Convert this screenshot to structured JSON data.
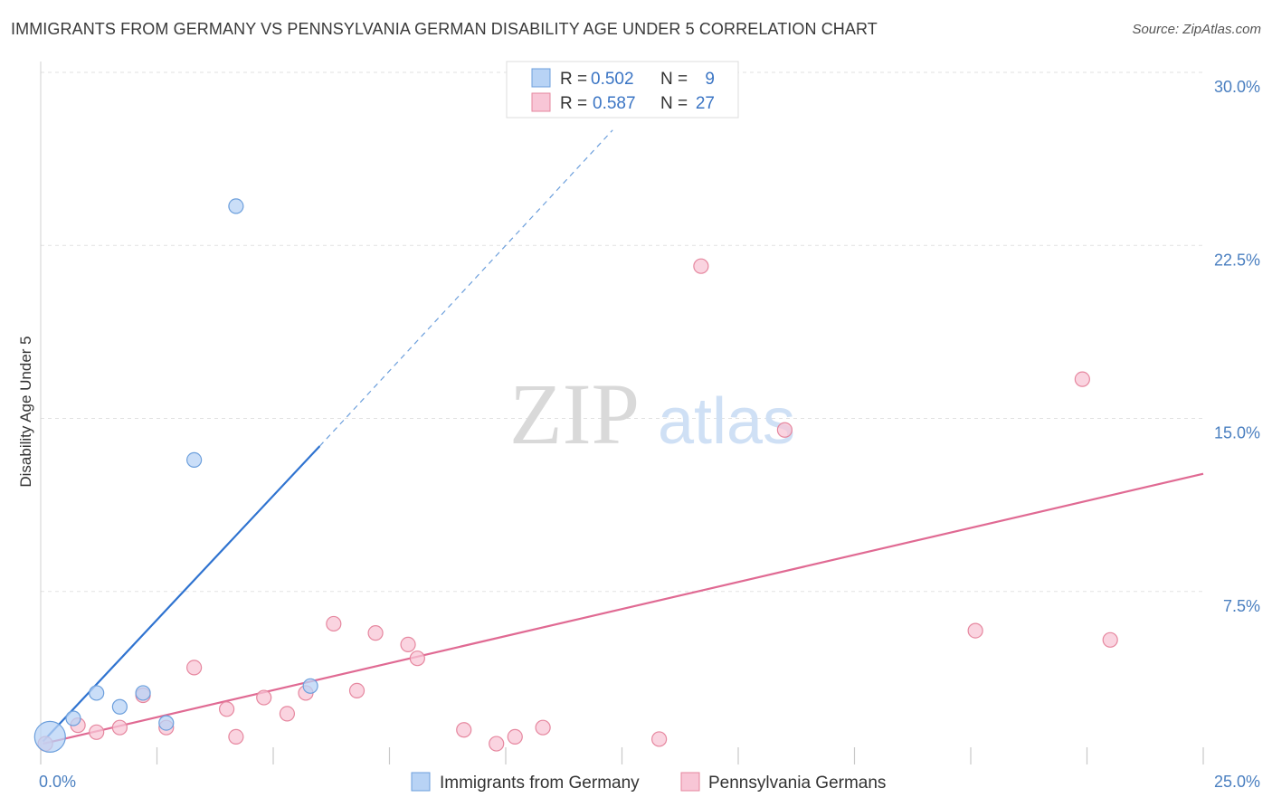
{
  "title": "IMMIGRANTS FROM GERMANY VS PENNSYLVANIA GERMAN DISABILITY AGE UNDER 5 CORRELATION CHART",
  "source": "Source: ZipAtlas.com",
  "watermark": {
    "zip": "ZIP",
    "atlas": "atlas"
  },
  "colors": {
    "blue_fill": "#b8d3f5",
    "blue_stroke": "#6c9fdc",
    "blue_line": "#2f73d0",
    "pink_fill": "#f8c6d6",
    "pink_stroke": "#e6879f",
    "pink_line": "#e06a93",
    "tick_text": "#4a7fc0",
    "grid": "#e2e2e2"
  },
  "legend": {
    "rows": [
      {
        "r_label": "R =",
        "r_value": "0.502",
        "n_label": "N =",
        "n_value": "9"
      },
      {
        "r_label": "R =",
        "r_value": "0.587",
        "n_label": "N =",
        "n_value": "27"
      }
    ]
  },
  "chart_data": {
    "type": "scatter",
    "title": "IMMIGRANTS FROM GERMANY VS PENNSYLVANIA GERMAN DISABILITY AGE UNDER 5 CORRELATION CHART",
    "xlabel": "",
    "ylabel": "Disability Age Under 5",
    "xlim": [
      0,
      25
    ],
    "ylim": [
      0,
      30.0
    ],
    "x_tick_labels": [
      "0.0%",
      "25.0%"
    ],
    "y_ticks": [
      7.5,
      15.0,
      22.5,
      30.0
    ],
    "y_tick_labels": [
      "7.5%",
      "15.0%",
      "22.5%",
      "30.0%"
    ],
    "grid": true,
    "series": [
      {
        "name": "Immigrants from Germany",
        "color": "blue",
        "r": 0.502,
        "n": 9,
        "points": [
          {
            "x": 0.2,
            "y": 1.2,
            "big": true
          },
          {
            "x": 0.7,
            "y": 2.0
          },
          {
            "x": 1.2,
            "y": 3.1
          },
          {
            "x": 1.7,
            "y": 2.5
          },
          {
            "x": 2.2,
            "y": 3.1
          },
          {
            "x": 2.7,
            "y": 1.8
          },
          {
            "x": 3.3,
            "y": 13.2
          },
          {
            "x": 4.2,
            "y": 24.2
          },
          {
            "x": 5.8,
            "y": 3.4
          }
        ],
        "trend": {
          "x0": 0.05,
          "y0": 1.0,
          "x1": 6.0,
          "y1": 13.8,
          "dash_to_x": 12.3,
          "dash_to_y": 27.5
        }
      },
      {
        "name": "Pennsylvania Germans",
        "color": "pink",
        "r": 0.587,
        "n": 27,
        "points": [
          {
            "x": 0.1,
            "y": 0.9
          },
          {
            "x": 0.8,
            "y": 1.7
          },
          {
            "x": 1.2,
            "y": 1.4
          },
          {
            "x": 1.7,
            "y": 1.6
          },
          {
            "x": 2.2,
            "y": 3.0
          },
          {
            "x": 2.7,
            "y": 1.6
          },
          {
            "x": 3.3,
            "y": 4.2
          },
          {
            "x": 4.0,
            "y": 2.4
          },
          {
            "x": 4.2,
            "y": 1.2
          },
          {
            "x": 4.8,
            "y": 2.9
          },
          {
            "x": 5.3,
            "y": 2.2
          },
          {
            "x": 5.7,
            "y": 3.1
          },
          {
            "x": 6.3,
            "y": 6.1
          },
          {
            "x": 6.8,
            "y": 3.2
          },
          {
            "x": 7.2,
            "y": 5.7
          },
          {
            "x": 7.9,
            "y": 5.2
          },
          {
            "x": 8.1,
            "y": 4.6
          },
          {
            "x": 9.1,
            "y": 1.5
          },
          {
            "x": 9.8,
            "y": 0.9
          },
          {
            "x": 10.2,
            "y": 1.2
          },
          {
            "x": 10.8,
            "y": 1.6
          },
          {
            "x": 13.3,
            "y": 1.1
          },
          {
            "x": 14.2,
            "y": 21.6
          },
          {
            "x": 16.0,
            "y": 14.5
          },
          {
            "x": 20.1,
            "y": 5.8
          },
          {
            "x": 22.4,
            "y": 16.7
          },
          {
            "x": 23.0,
            "y": 5.4
          }
        ],
        "trend": {
          "x0": 0.05,
          "y0": 0.9,
          "x1": 25.0,
          "y1": 12.6
        }
      }
    ]
  }
}
